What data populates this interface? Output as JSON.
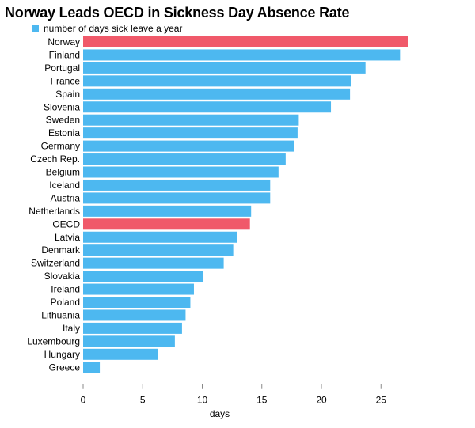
{
  "chart_data": {
    "type": "bar",
    "orientation": "horizontal",
    "title": "Norway Leads OECD in Sickness Day Absence Rate",
    "legend": {
      "label": "number of days sick leave a year",
      "placement": "top-left"
    },
    "xlabel": "days",
    "ylabel": "",
    "xlim": [
      0,
      27.5
    ],
    "xticks": [
      0,
      5,
      10,
      15,
      20,
      25
    ],
    "grid": false,
    "categories": [
      "Norway",
      "Finland",
      "Portugal",
      "France",
      "Spain",
      "Slovenia",
      "Sweden",
      "Estonia",
      "Germany",
      "Czech Rep.",
      "Belgium",
      "Iceland",
      "Austria",
      "Netherlands",
      "OECD",
      "Latvia",
      "Denmark",
      "Switzerland",
      "Slovakia",
      "Ireland",
      "Poland",
      "Lithuania",
      "Italy",
      "Luxembourg",
      "Hungary",
      "Greece"
    ],
    "values": [
      27.3,
      26.6,
      23.7,
      22.5,
      22.4,
      20.8,
      18.1,
      18.0,
      17.7,
      17.0,
      16.4,
      15.7,
      15.7,
      14.1,
      14.0,
      12.9,
      12.6,
      11.8,
      10.1,
      9.3,
      9.0,
      8.6,
      8.3,
      7.7,
      6.3,
      1.4
    ],
    "highlight": [
      "Norway",
      "OECD"
    ],
    "colors": {
      "bar": "#4db8f0",
      "highlight": "#f0596a"
    }
  }
}
